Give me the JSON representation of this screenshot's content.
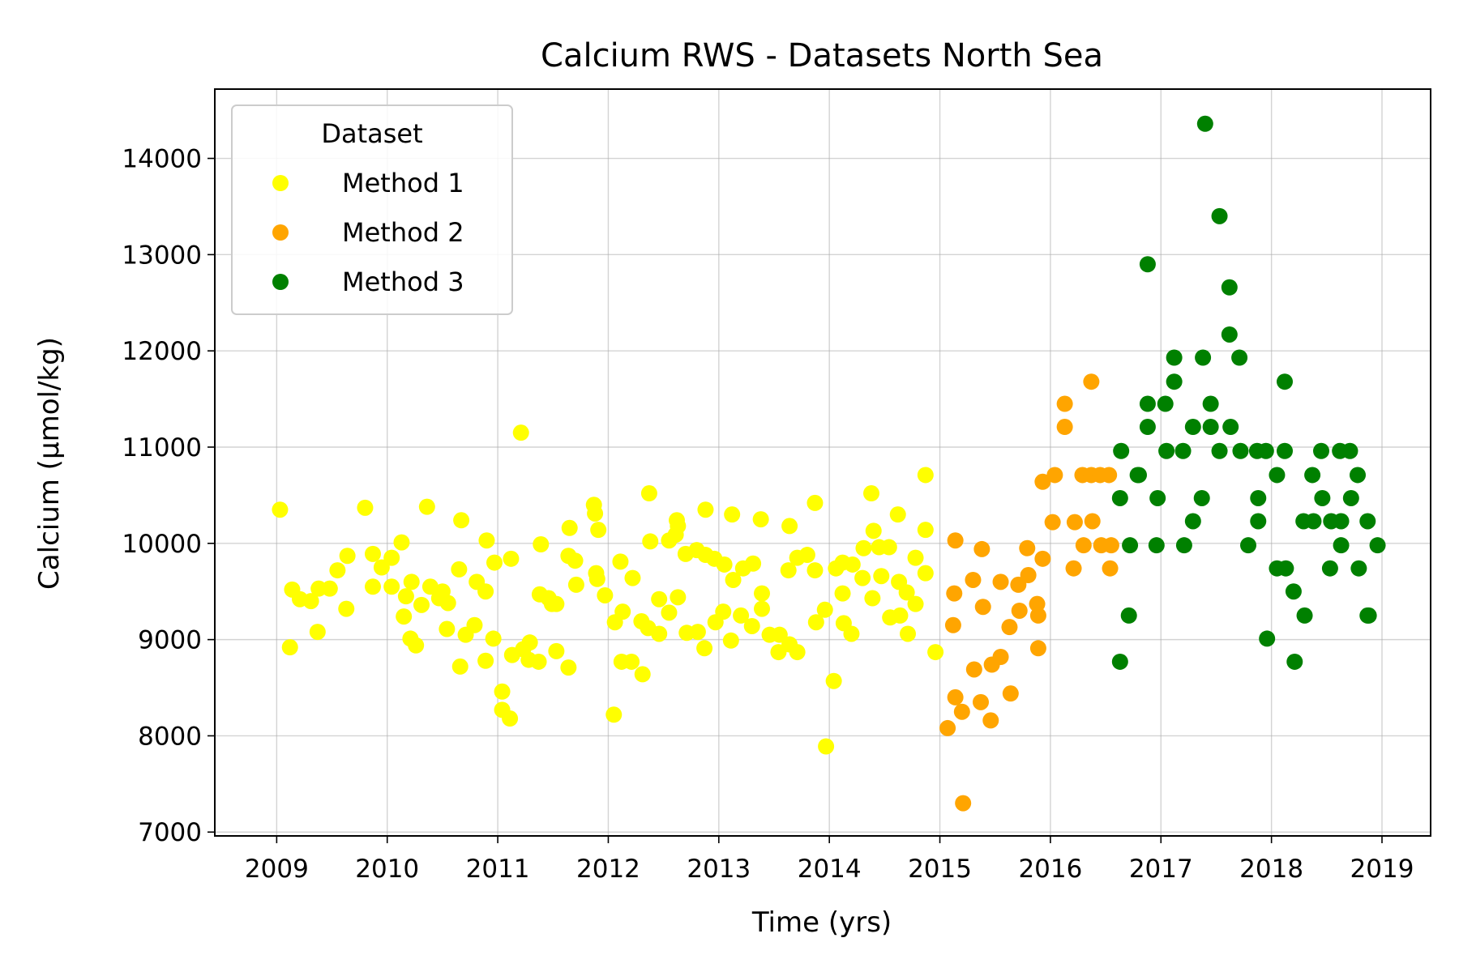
{
  "chart_data": {
    "type": "scatter",
    "title": "Calcium RWS - Datasets North Sea",
    "xlabel": "Time (yrs)",
    "ylabel": "Calcium (µmol/kg)",
    "xlim": [
      2008.44,
      2019.44
    ],
    "ylim": [
      6960,
      14720
    ],
    "xticks": [
      2009,
      2010,
      2011,
      2012,
      2013,
      2014,
      2015,
      2016,
      2017,
      2018,
      2019
    ],
    "xtick_labels": [
      "2009",
      "2010",
      "2011",
      "2012",
      "2013",
      "2014",
      "2015",
      "2016",
      "2017",
      "2018",
      "2019"
    ],
    "yticks": [
      7000,
      8000,
      9000,
      10000,
      11000,
      12000,
      13000,
      14000
    ],
    "ytick_labels": [
      "7000",
      "8000",
      "9000",
      "10000",
      "11000",
      "12000",
      "13000",
      "14000"
    ],
    "grid": true,
    "legend": {
      "title": "Dataset",
      "placement": "upper-left"
    },
    "series": [
      {
        "name": "Method 1",
        "color": "#ffff00",
        "points": [
          [
            2009.03,
            10350
          ],
          [
            2009.12,
            8920
          ],
          [
            2009.14,
            9520
          ],
          [
            2009.21,
            9420
          ],
          [
            2009.31,
            9400
          ],
          [
            2009.37,
            9080
          ],
          [
            2009.38,
            9530
          ],
          [
            2009.48,
            9530
          ],
          [
            2009.55,
            9720
          ],
          [
            2009.63,
            9320
          ],
          [
            2009.64,
            9870
          ],
          [
            2009.8,
            10370
          ],
          [
            2009.87,
            9550
          ],
          [
            2009.87,
            9890
          ],
          [
            2009.95,
            9750
          ],
          [
            2010.04,
            9550
          ],
          [
            2010.04,
            9850
          ],
          [
            2010.13,
            10010
          ],
          [
            2010.15,
            9240
          ],
          [
            2010.17,
            9450
          ],
          [
            2010.21,
            9010
          ],
          [
            2010.22,
            9600
          ],
          [
            2010.26,
            8940
          ],
          [
            2010.31,
            9360
          ],
          [
            2010.36,
            10380
          ],
          [
            2010.39,
            9550
          ],
          [
            2010.47,
            9430
          ],
          [
            2010.5,
            9500
          ],
          [
            2010.54,
            9110
          ],
          [
            2010.55,
            9380
          ],
          [
            2010.65,
            9730
          ],
          [
            2010.66,
            8720
          ],
          [
            2010.67,
            10240
          ],
          [
            2010.71,
            9050
          ],
          [
            2010.79,
            9150
          ],
          [
            2010.81,
            9600
          ],
          [
            2010.89,
            9500
          ],
          [
            2010.89,
            8780
          ],
          [
            2010.9,
            10030
          ],
          [
            2010.96,
            9010
          ],
          [
            2010.97,
            9800
          ],
          [
            2011.04,
            8460
          ],
          [
            2011.04,
            8270
          ],
          [
            2011.11,
            8180
          ],
          [
            2011.12,
            9840
          ],
          [
            2011.13,
            8840
          ],
          [
            2011.21,
            11150
          ],
          [
            2011.23,
            8900
          ],
          [
            2011.28,
            8790
          ],
          [
            2011.29,
            8970
          ],
          [
            2011.37,
            8770
          ],
          [
            2011.38,
            9470
          ],
          [
            2011.39,
            9990
          ],
          [
            2011.46,
            9430
          ],
          [
            2011.49,
            9370
          ],
          [
            2011.53,
            9370
          ],
          [
            2011.53,
            8880
          ],
          [
            2011.64,
            8710
          ],
          [
            2011.64,
            9870
          ],
          [
            2011.65,
            10160
          ],
          [
            2011.7,
            9820
          ],
          [
            2011.71,
            9570
          ],
          [
            2011.87,
            10400
          ],
          [
            2011.88,
            10310
          ],
          [
            2011.89,
            9690
          ],
          [
            2011.9,
            9630
          ],
          [
            2011.91,
            10140
          ],
          [
            2011.97,
            9460
          ],
          [
            2012.05,
            8220
          ],
          [
            2012.06,
            9180
          ],
          [
            2012.11,
            9810
          ],
          [
            2012.12,
            8770
          ],
          [
            2012.13,
            9290
          ],
          [
            2012.21,
            8770
          ],
          [
            2012.22,
            9640
          ],
          [
            2012.3,
            9190
          ],
          [
            2012.31,
            8640
          ],
          [
            2012.36,
            9120
          ],
          [
            2012.37,
            10520
          ],
          [
            2012.38,
            10020
          ],
          [
            2012.46,
            9060
          ],
          [
            2012.46,
            9420
          ],
          [
            2012.55,
            9280
          ],
          [
            2012.55,
            10030
          ],
          [
            2012.61,
            10090
          ],
          [
            2012.62,
            10240
          ],
          [
            2012.63,
            10180
          ],
          [
            2012.63,
            9440
          ],
          [
            2012.7,
            9890
          ],
          [
            2012.71,
            9070
          ],
          [
            2012.8,
            9930
          ],
          [
            2012.81,
            9080
          ],
          [
            2012.87,
            8910
          ],
          [
            2012.88,
            9880
          ],
          [
            2012.88,
            10350
          ],
          [
            2012.96,
            9840
          ],
          [
            2012.97,
            9180
          ],
          [
            2013.04,
            9290
          ],
          [
            2013.05,
            9780
          ],
          [
            2013.11,
            8990
          ],
          [
            2013.12,
            10300
          ],
          [
            2013.13,
            9620
          ],
          [
            2013.2,
            9250
          ],
          [
            2013.22,
            9740
          ],
          [
            2013.3,
            9140
          ],
          [
            2013.31,
            9790
          ],
          [
            2013.38,
            10250
          ],
          [
            2013.39,
            9480
          ],
          [
            2013.39,
            9320
          ],
          [
            2013.46,
            9050
          ],
          [
            2013.54,
            8870
          ],
          [
            2013.55,
            9050
          ],
          [
            2013.63,
            9720
          ],
          [
            2013.64,
            10180
          ],
          [
            2013.64,
            8950
          ],
          [
            2013.71,
            8870
          ],
          [
            2013.71,
            9850
          ],
          [
            2013.8,
            9880
          ],
          [
            2013.87,
            9720
          ],
          [
            2013.87,
            10420
          ],
          [
            2013.88,
            9180
          ],
          [
            2013.96,
            9310
          ],
          [
            2013.97,
            7890
          ],
          [
            2014.04,
            8570
          ],
          [
            2014.06,
            9740
          ],
          [
            2014.12,
            9800
          ],
          [
            2014.12,
            9480
          ],
          [
            2014.13,
            9170
          ],
          [
            2014.2,
            9060
          ],
          [
            2014.21,
            9780
          ],
          [
            2014.3,
            9640
          ],
          [
            2014.31,
            9950
          ],
          [
            2014.38,
            10520
          ],
          [
            2014.39,
            9430
          ],
          [
            2014.4,
            10130
          ],
          [
            2014.45,
            9960
          ],
          [
            2014.47,
            9660
          ],
          [
            2014.54,
            9960
          ],
          [
            2014.55,
            9230
          ],
          [
            2014.62,
            10300
          ],
          [
            2014.63,
            9600
          ],
          [
            2014.64,
            9250
          ],
          [
            2014.7,
            9490
          ],
          [
            2014.71,
            9060
          ],
          [
            2014.78,
            9850
          ],
          [
            2014.78,
            9370
          ],
          [
            2014.87,
            10710
          ],
          [
            2014.87,
            10140
          ],
          [
            2014.87,
            9690
          ],
          [
            2014.96,
            8870
          ]
        ]
      },
      {
        "name": "Method 2",
        "color": "#ffa500",
        "points": [
          [
            2015.07,
            8080
          ],
          [
            2015.12,
            9150
          ],
          [
            2015.13,
            9480
          ],
          [
            2015.14,
            10030
          ],
          [
            2015.14,
            8400
          ],
          [
            2015.2,
            8250
          ],
          [
            2015.21,
            7300
          ],
          [
            2015.3,
            9620
          ],
          [
            2015.31,
            8690
          ],
          [
            2015.37,
            8350
          ],
          [
            2015.38,
            9940
          ],
          [
            2015.39,
            9340
          ],
          [
            2015.46,
            8160
          ],
          [
            2015.47,
            8740
          ],
          [
            2015.55,
            8820
          ],
          [
            2015.55,
            9600
          ],
          [
            2015.63,
            9130
          ],
          [
            2015.64,
            8440
          ],
          [
            2015.71,
            9570
          ],
          [
            2015.72,
            9300
          ],
          [
            2015.79,
            9950
          ],
          [
            2015.8,
            9670
          ],
          [
            2015.88,
            9370
          ],
          [
            2015.89,
            9250
          ],
          [
            2015.89,
            8910
          ],
          [
            2015.93,
            10640
          ],
          [
            2015.93,
            9840
          ],
          [
            2016.02,
            10220
          ],
          [
            2016.04,
            10710
          ],
          [
            2016.13,
            11450
          ],
          [
            2016.13,
            11210
          ],
          [
            2016.21,
            9740
          ],
          [
            2016.22,
            10220
          ],
          [
            2016.29,
            10710
          ],
          [
            2016.3,
            9980
          ],
          [
            2016.37,
            11680
          ],
          [
            2016.37,
            10710
          ],
          [
            2016.38,
            10230
          ],
          [
            2016.45,
            10710
          ],
          [
            2016.46,
            9980
          ],
          [
            2016.53,
            10710
          ],
          [
            2016.54,
            9740
          ],
          [
            2016.55,
            9980
          ]
        ]
      },
      {
        "name": "Method 3",
        "color": "#008000",
        "points": [
          [
            2016.63,
            8770
          ],
          [
            2016.63,
            10470
          ],
          [
            2016.64,
            10960
          ],
          [
            2016.71,
            9250
          ],
          [
            2016.72,
            9980
          ],
          [
            2016.79,
            10710
          ],
          [
            2016.8,
            10710
          ],
          [
            2016.88,
            12900
          ],
          [
            2016.88,
            11450
          ],
          [
            2016.88,
            11210
          ],
          [
            2016.96,
            9980
          ],
          [
            2016.97,
            10470
          ],
          [
            2017.04,
            11450
          ],
          [
            2017.05,
            10960
          ],
          [
            2017.12,
            11930
          ],
          [
            2017.12,
            11680
          ],
          [
            2017.2,
            10960
          ],
          [
            2017.21,
            9980
          ],
          [
            2017.29,
            10230
          ],
          [
            2017.29,
            11210
          ],
          [
            2017.37,
            10470
          ],
          [
            2017.38,
            11930
          ],
          [
            2017.4,
            14360
          ],
          [
            2017.45,
            11450
          ],
          [
            2017.45,
            11210
          ],
          [
            2017.53,
            13400
          ],
          [
            2017.53,
            10960
          ],
          [
            2017.62,
            12660
          ],
          [
            2017.62,
            12170
          ],
          [
            2017.63,
            11210
          ],
          [
            2017.71,
            11930
          ],
          [
            2017.72,
            10960
          ],
          [
            2017.79,
            9980
          ],
          [
            2017.87,
            10960
          ],
          [
            2017.88,
            10470
          ],
          [
            2017.88,
            10230
          ],
          [
            2017.95,
            10960
          ],
          [
            2017.96,
            9010
          ],
          [
            2018.05,
            10710
          ],
          [
            2018.05,
            9740
          ],
          [
            2018.12,
            11680
          ],
          [
            2018.12,
            10960
          ],
          [
            2018.13,
            9740
          ],
          [
            2018.2,
            9500
          ],
          [
            2018.21,
            8770
          ],
          [
            2018.29,
            10230
          ],
          [
            2018.3,
            9250
          ],
          [
            2018.37,
            10710
          ],
          [
            2018.38,
            10230
          ],
          [
            2018.45,
            10960
          ],
          [
            2018.46,
            10470
          ],
          [
            2018.53,
            9740
          ],
          [
            2018.54,
            10230
          ],
          [
            2018.62,
            10960
          ],
          [
            2018.63,
            10230
          ],
          [
            2018.63,
            9980
          ],
          [
            2018.71,
            10960
          ],
          [
            2018.72,
            10470
          ],
          [
            2018.78,
            10710
          ],
          [
            2018.79,
            9740
          ],
          [
            2018.87,
            10230
          ],
          [
            2018.87,
            9250
          ],
          [
            2018.88,
            9250
          ],
          [
            2018.96,
            9980
          ]
        ]
      }
    ]
  }
}
